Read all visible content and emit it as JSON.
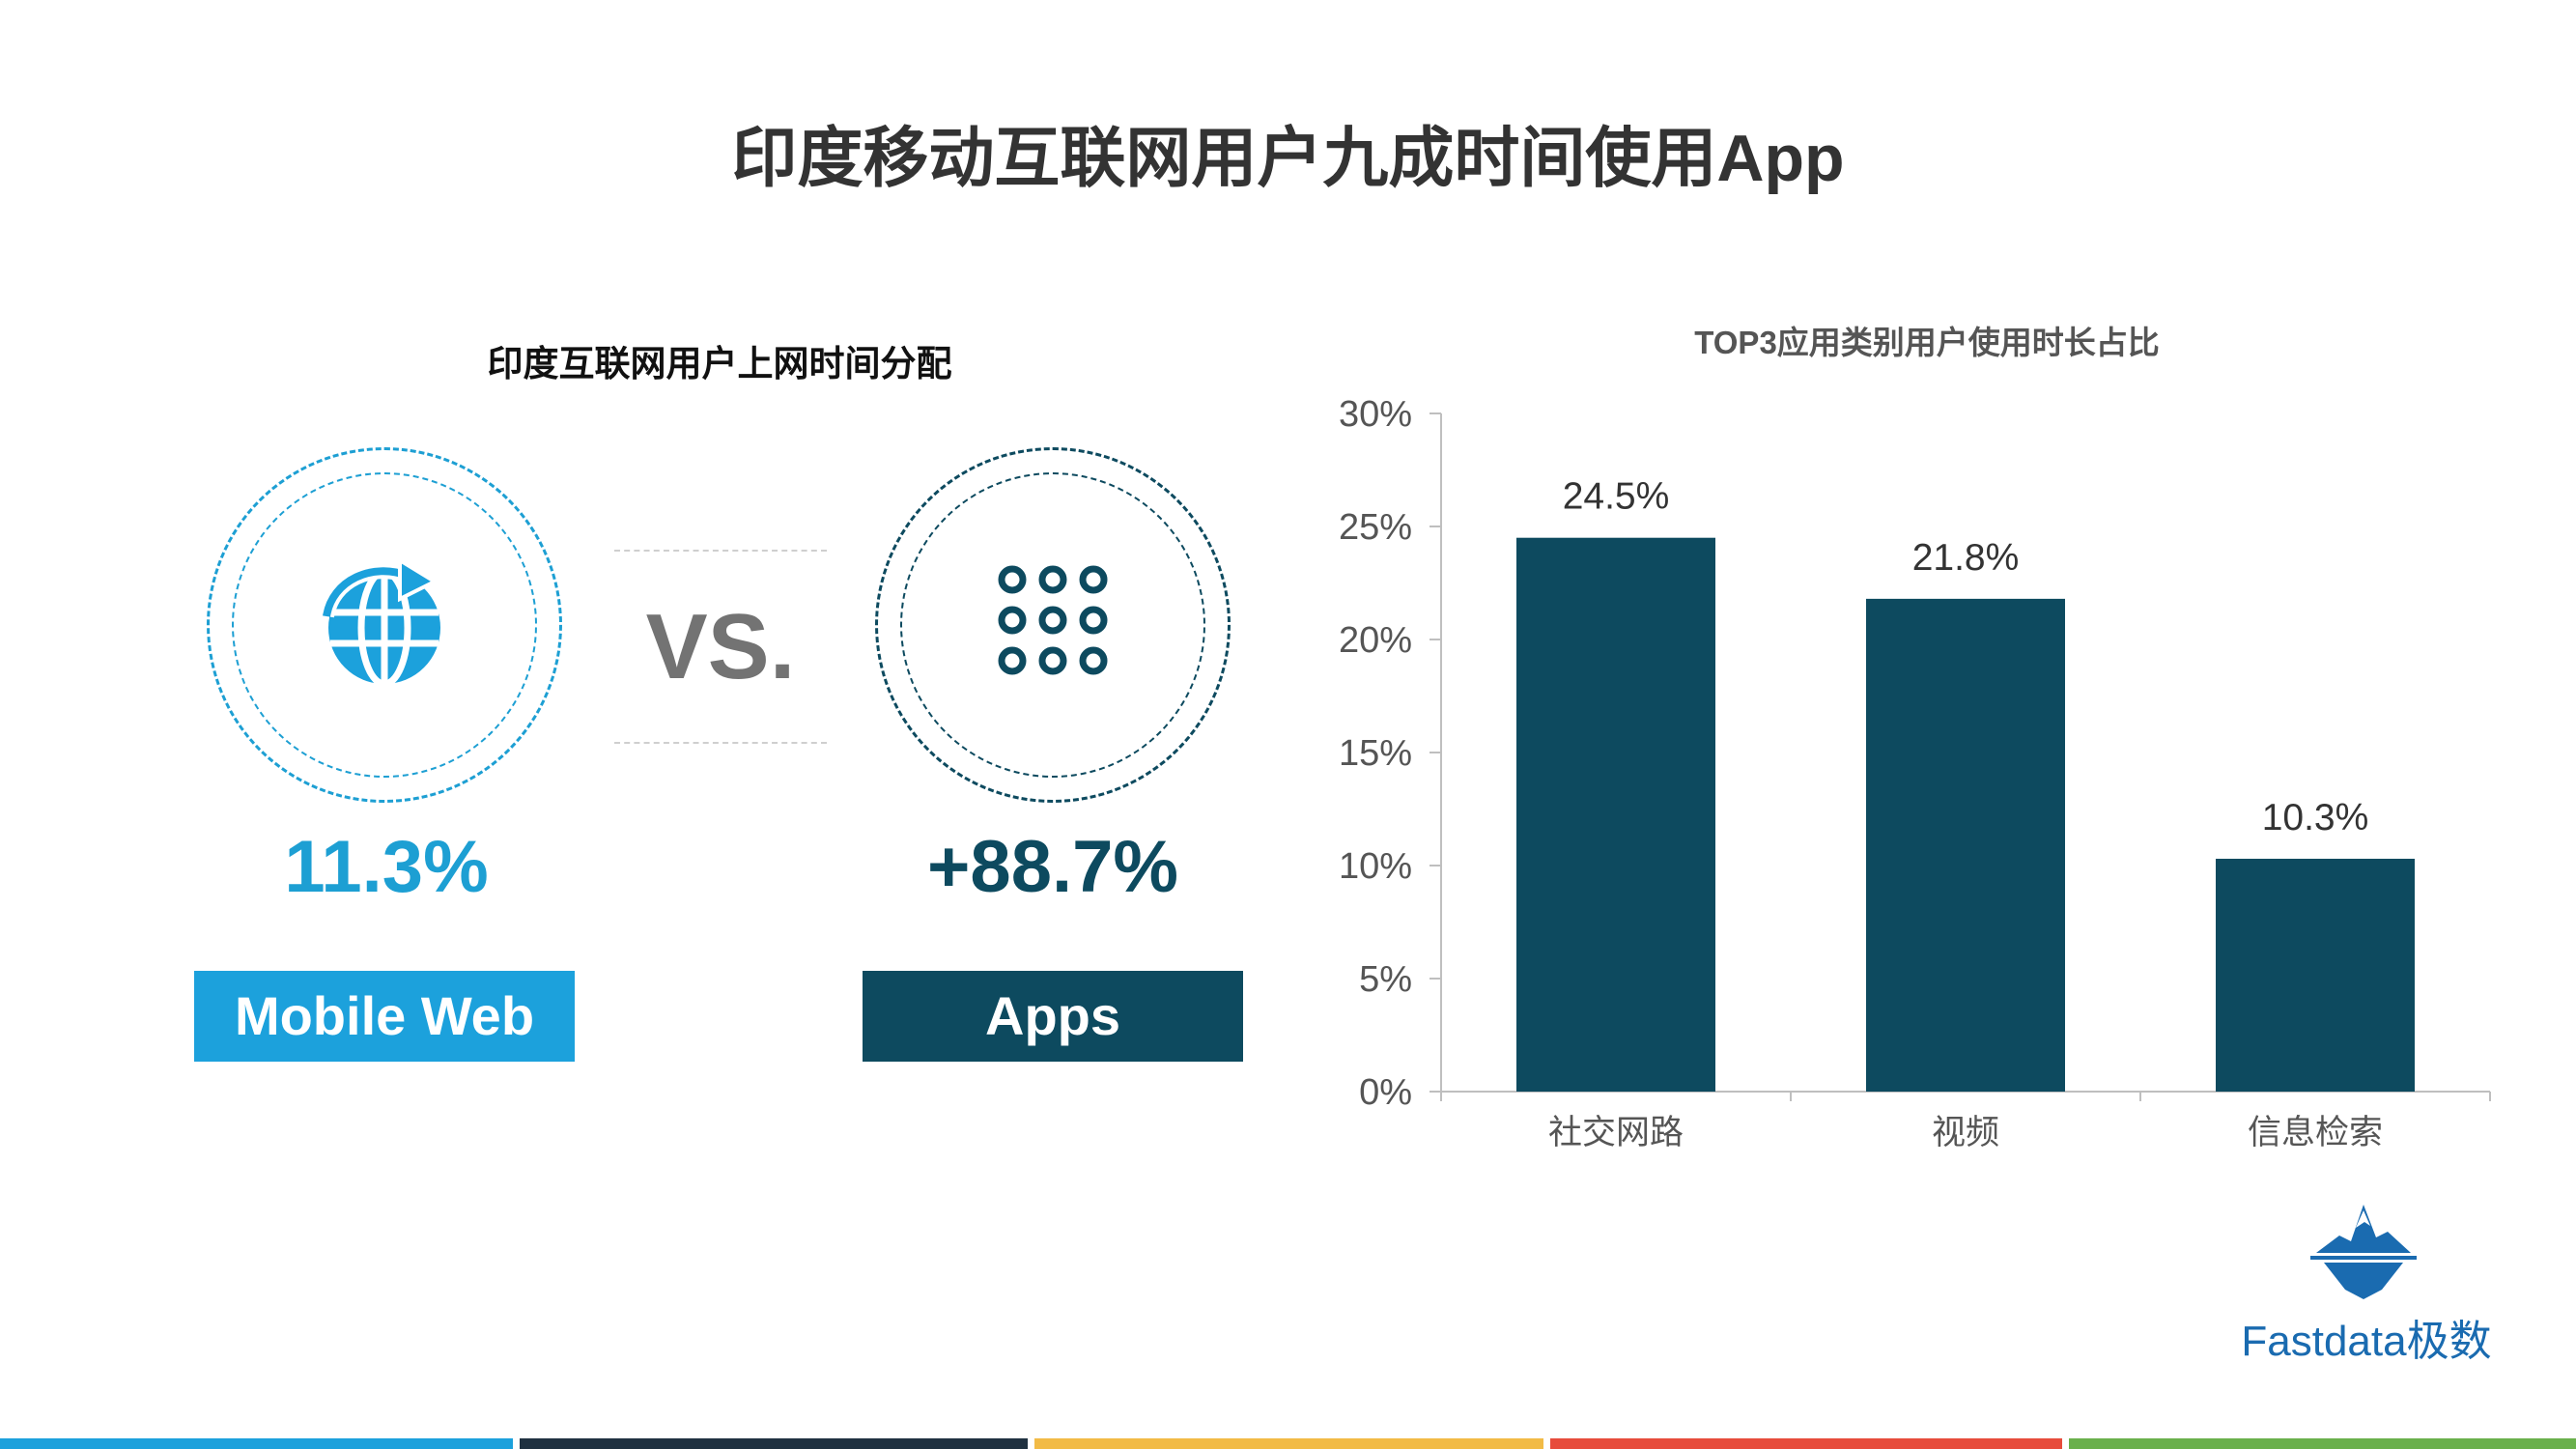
{
  "page": {
    "title": "印度移动互联网用户九成时间使用App"
  },
  "left_panel": {
    "subtitle": "印度互联网用户上网时间分配",
    "vs_text": "VS.",
    "mobile_web": {
      "percent": "11.3%",
      "label": "Mobile Web",
      "icon": "globe-arrow-icon",
      "color": "#1ca1dc"
    },
    "apps": {
      "percent": "+88.7%",
      "label": "Apps",
      "icon": "app-grid-icon",
      "color": "#0d4a5f"
    }
  },
  "chart_data": {
    "type": "bar",
    "title": "TOP3应用类别用户使用时长占比",
    "categories": [
      "社交网路",
      "视频",
      "信息检索"
    ],
    "values": [
      24.5,
      21.8,
      10.3
    ],
    "data_labels": [
      "24.5%",
      "21.8%",
      "10.3%"
    ],
    "ylim": [
      0,
      30
    ],
    "yticks": [
      0,
      5,
      10,
      15,
      20,
      25,
      30
    ],
    "ytick_labels": [
      "0%",
      "5%",
      "10%",
      "15%",
      "20%",
      "25%",
      "30%"
    ],
    "xlabel": "",
    "ylabel": "",
    "grid": false,
    "bar_color": "#0d4a5f"
  },
  "branding": {
    "logo_text": "Fastdata极数",
    "logo_icon": "iceberg-logo-icon",
    "logo_color": "#1a6bb0"
  },
  "footer_stripe_colors": [
    "#1ca1dc",
    "#1f3140",
    "#f2bb46",
    "#e74c3c",
    "#6ab04c"
  ]
}
